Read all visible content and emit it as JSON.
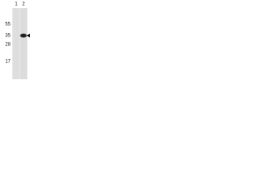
{
  "lanes": [
    "1",
    "2"
  ],
  "markers": [
    "55",
    "35",
    "28",
    "17"
  ]
}
